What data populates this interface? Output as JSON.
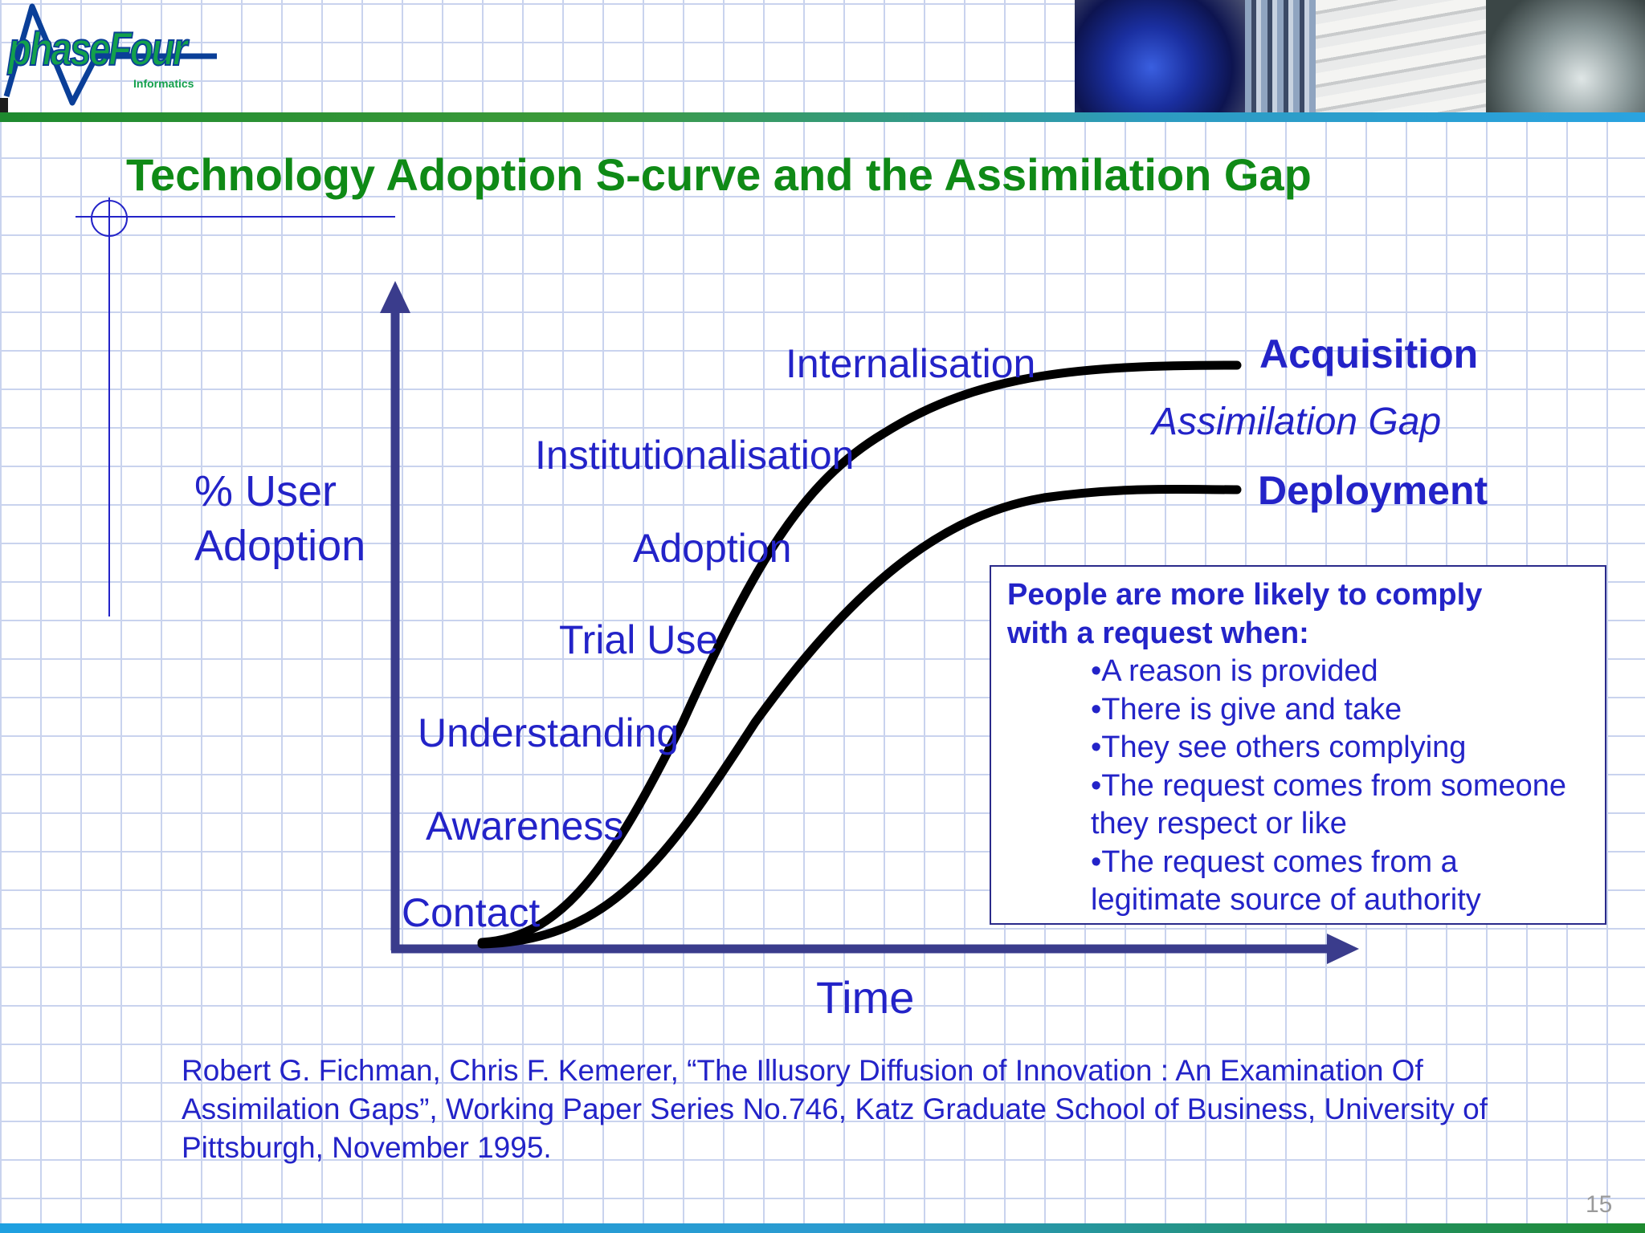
{
  "logo": {
    "name": "phaseFour",
    "sub": "Informatics"
  },
  "title": "Technology Adoption S-curve and the Assimilation Gap",
  "diagram": {
    "y_axis_label": [
      "% User",
      "Adoption"
    ],
    "x_axis_label": "Time",
    "stages": [
      "Contact",
      "Awareness",
      "Understanding",
      "Trial Use",
      "Adoption",
      "Institutionalisation",
      "Internalisation"
    ],
    "curves": [
      "Acquisition",
      "Deployment"
    ],
    "gap_label": "Assimilation Gap"
  },
  "infobox": {
    "heading": [
      "People are more likely to comply",
      "with a request when:"
    ],
    "bullets": [
      "•A reason is provided",
      "•There is give and take",
      "•They see others complying",
      "•The request comes from someone they respect or like",
      "•The request comes from a legitimate source of authority"
    ]
  },
  "citation": "Robert G. Fichman, Chris F. Kemerer, “The Illusory Diffusion of Innovation : An Examination Of Assimilation Gaps”, Working Paper Series No.746, Katz Graduate School of Business, University of Pittsburgh, November 1995.",
  "page_number": "15",
  "colors": {
    "title": "#0f8a16",
    "text": "#2323c8",
    "axis": "#3a3c8c",
    "curve": "#000000",
    "grid": "#c9d3ee"
  }
}
